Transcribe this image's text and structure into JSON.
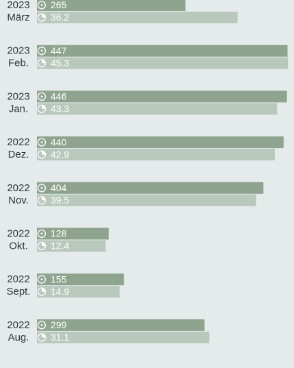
{
  "chart_data": {
    "type": "bar",
    "orientation": "horizontal",
    "categories": [
      "März",
      "Feb.",
      "Jan.",
      "Dez.",
      "Nov.",
      "Okt.",
      "Sept.",
      "Aug."
    ],
    "category_years": [
      "2023",
      "2023",
      "2023",
      "2022",
      "2022",
      "2022",
      "2022",
      "2022"
    ],
    "series": [
      {
        "color": "#8ea48f",
        "icon": "bolt",
        "xlim": [
          0,
          450
        ],
        "values": [
          265,
          447,
          446,
          440,
          404,
          128,
          155,
          299
        ]
      },
      {
        "color": "#b9c8bd",
        "icon": "gauge",
        "xlim": [
          0,
          45.5
        ],
        "values": [
          36.2,
          45.3,
          43.3,
          42.9,
          39.5,
          12.4,
          14.9,
          31.1
        ]
      }
    ]
  }
}
